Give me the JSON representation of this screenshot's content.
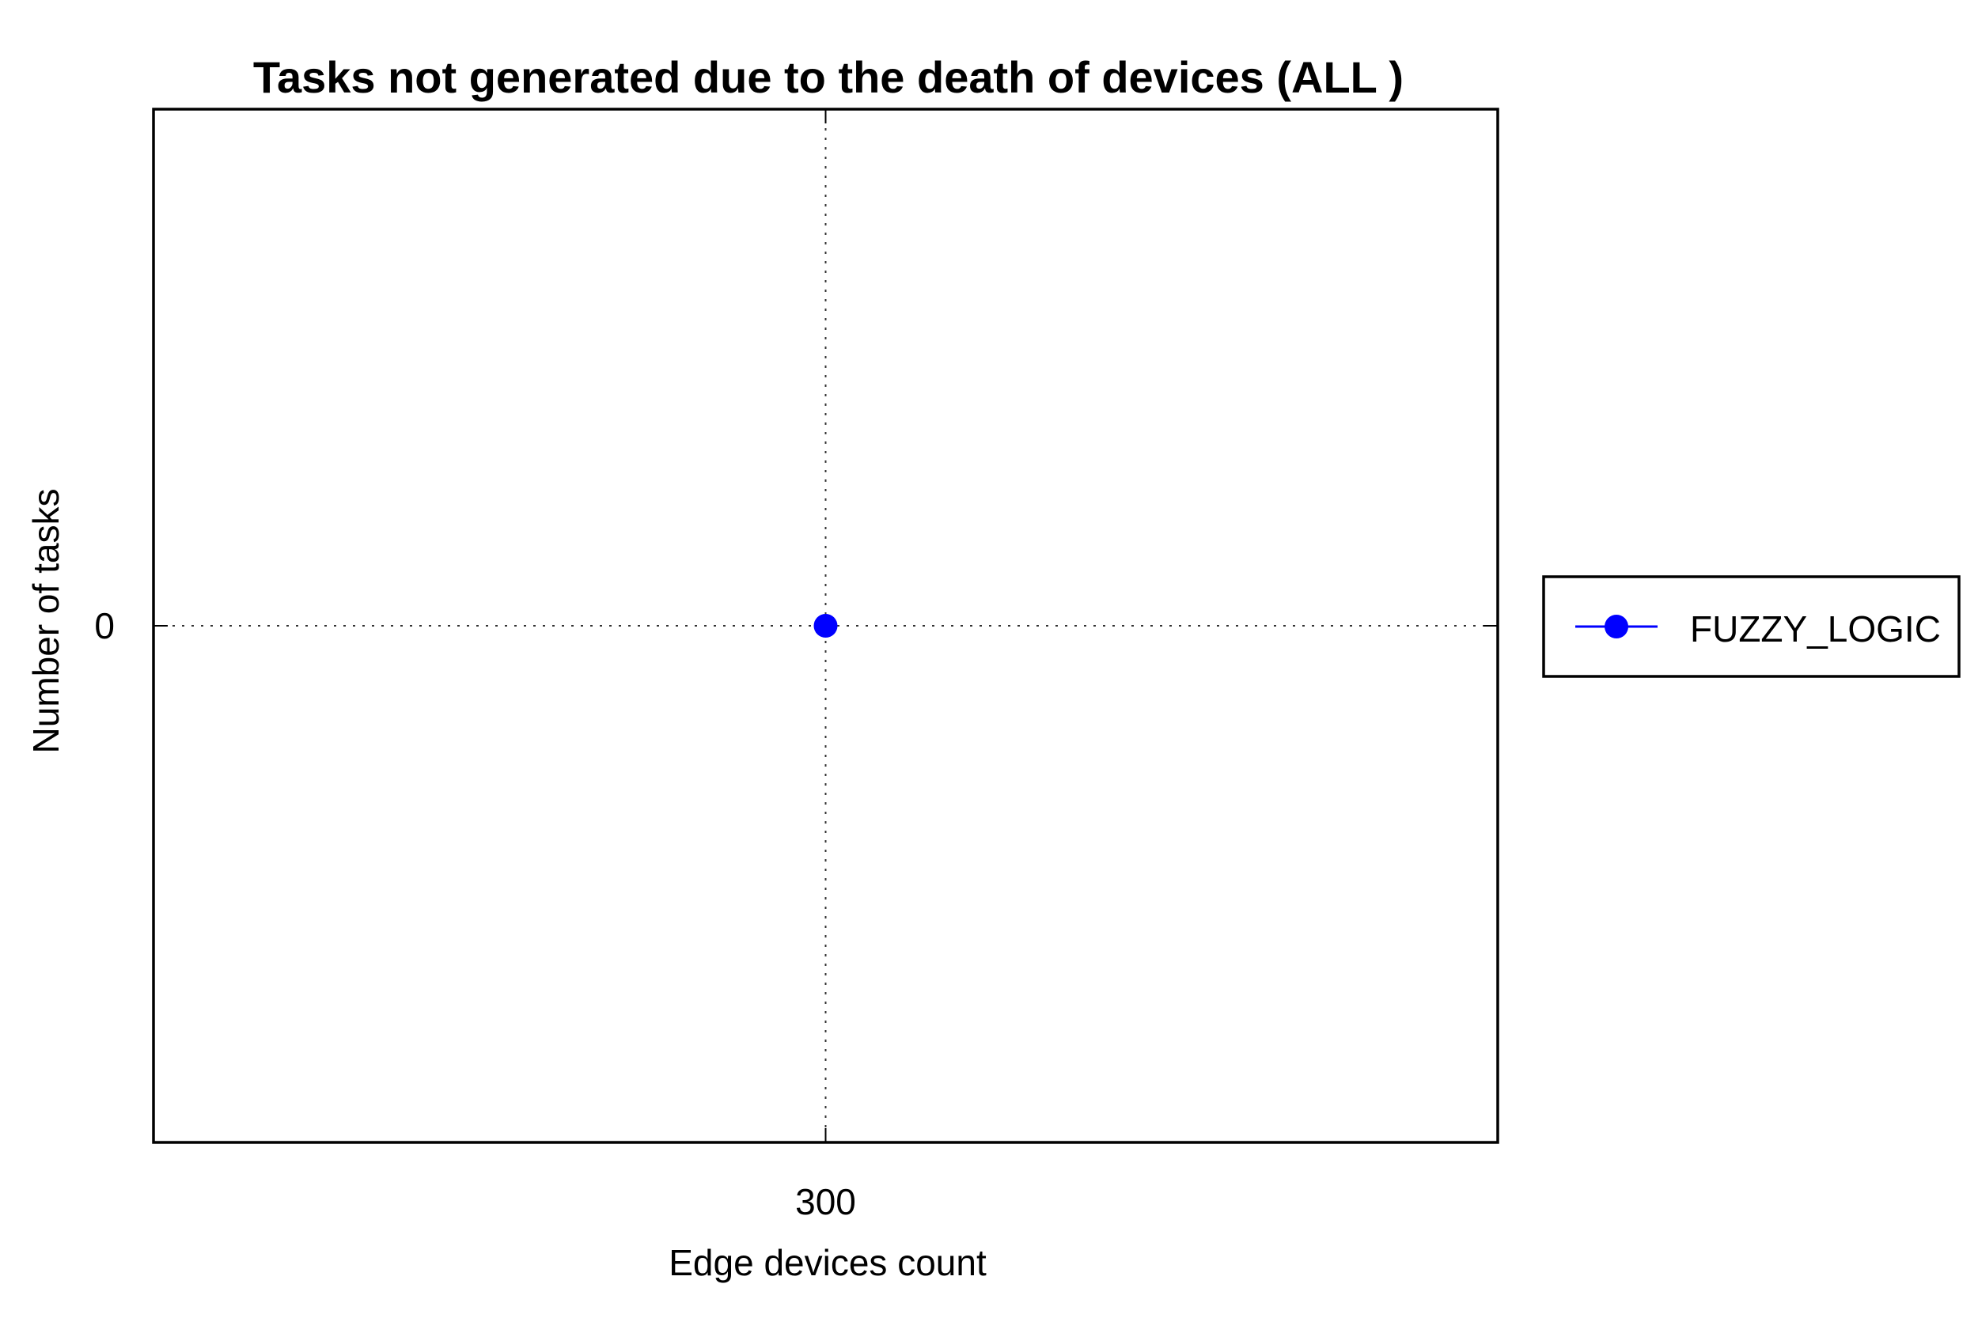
{
  "chart_data": {
    "type": "line",
    "title": "Tasks not generated due to the death of devices (ALL )",
    "xlabel": "Edge devices count",
    "ylabel": "Number of tasks",
    "x": [
      300
    ],
    "x_tick_labels": [
      "300"
    ],
    "y_tick_labels": [
      "0"
    ],
    "y_ticks": [
      0
    ],
    "xlim": [
      200,
      400
    ],
    "ylim": [
      -1,
      1
    ],
    "grid": true,
    "legend_position": "right",
    "series": [
      {
        "name": "FUZZY_LOGIC",
        "color": "#0000ff",
        "marker": "circle",
        "values": [
          0
        ]
      }
    ]
  }
}
